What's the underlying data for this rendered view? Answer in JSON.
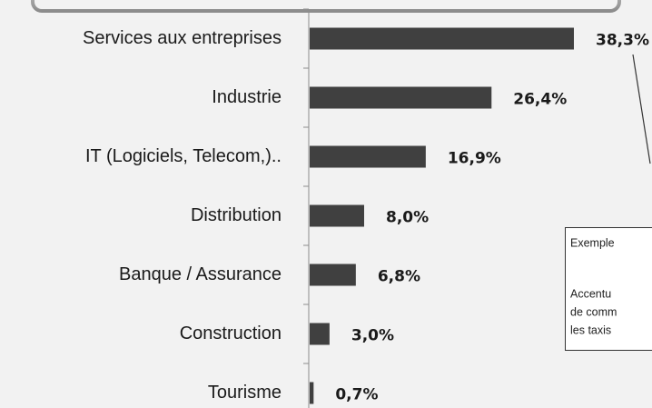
{
  "chart_data": {
    "type": "bar",
    "orientation": "horizontal",
    "categories": [
      "Services aux entreprises",
      "Industrie",
      "IT (Logiciels, Telecom,)..",
      "Distribution",
      "Banque / Assurance",
      "Construction",
      "Tourisme"
    ],
    "values": [
      38.3,
      26.4,
      16.9,
      8.0,
      6.8,
      3.0,
      0.7
    ],
    "value_labels": [
      "38,3%",
      "26,4%",
      "16,9%",
      "8,0%",
      "6,8%",
      "3,0%",
      "0,7%"
    ],
    "color": "#404040",
    "annotation": {
      "lines": [
        "Exemple",
        "Accentu",
        "de comm",
        "les taxis"
      ]
    }
  }
}
